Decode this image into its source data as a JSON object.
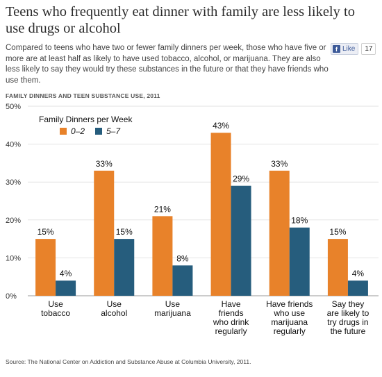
{
  "headline": "Teens who frequently eat dinner with family are less likely to use drugs or alcohol",
  "dek": "Compared to teens who have two or fewer family dinners per week, those who have five or more are at least half as likely to have used tobacco, alcohol, or marijuana. They are also less likely to say they would try these substances in the future or that they have friends who use them.",
  "like_button": {
    "icon": "f",
    "label": "Like",
    "count": "17"
  },
  "source": "Source: The National Center on Addiction and Substance Abuse at Columbia University, 2011.",
  "chart_data": {
    "type": "bar",
    "title": "FAMILY DINNERS AND TEEN SUBSTANCE USE, 2011",
    "categories": [
      [
        "Use",
        "tobacco"
      ],
      [
        "Use",
        "alcohol"
      ],
      [
        "Use",
        "marijuana"
      ],
      [
        "Have",
        "friends",
        "who drink",
        "regularly"
      ],
      [
        "Have friends",
        "who use",
        "marijuana",
        "regularly"
      ],
      [
        "Say they",
        "are likely to",
        "try drugs in",
        "the future"
      ]
    ],
    "series": [
      {
        "name": "0–2",
        "color": "#e8822a",
        "values": [
          15,
          33,
          21,
          43,
          33,
          15
        ]
      },
      {
        "name": "5–7",
        "color": "#265d7d",
        "values": [
          4,
          15,
          8,
          29,
          18,
          4
        ]
      }
    ],
    "value_suffix": "%",
    "ylim": [
      0,
      50
    ],
    "yticks": [
      "0%",
      "10%",
      "20%",
      "30%",
      "40%",
      "50%"
    ],
    "grid": true,
    "legend": {
      "title": "Family Dinners per Week",
      "placement": "top-left"
    }
  }
}
